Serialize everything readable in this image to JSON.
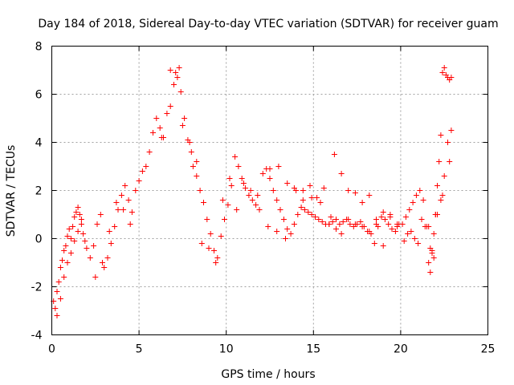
{
  "chart_data": {
    "type": "scatter",
    "title": "Day 184 of 2018, Sidereal Day-to-day VTEC variation (SDTVAR) for receiver guam",
    "xlabel": "GPS time / hours",
    "ylabel": "SDTVAR / TECUs",
    "xlim": [
      0,
      25
    ],
    "ylim": [
      -4,
      8
    ],
    "xticks": [
      0,
      5,
      10,
      15,
      20,
      25
    ],
    "yticks": [
      -4,
      -2,
      0,
      2,
      4,
      6,
      8
    ],
    "xtick_labels": [
      "0",
      "5",
      "10",
      "15",
      "20",
      "25"
    ],
    "ytick_labels": [
      "-4",
      "-2",
      "0",
      "2",
      "4",
      "6",
      "8"
    ],
    "grid": true,
    "marker": "+",
    "color": "#ff0000",
    "series": [
      {
        "name": "SDTVAR",
        "x": [
          0.1,
          0.2,
          0.3,
          0.4,
          0.5,
          0.6,
          0.7,
          0.8,
          0.9,
          1.0,
          1.1,
          1.2,
          1.3,
          1.4,
          1.5,
          1.6,
          1.7,
          1.8,
          1.9,
          2.0,
          0.3,
          0.5,
          0.7,
          0.9,
          1.1,
          1.3,
          1.5,
          1.7,
          2.2,
          2.4,
          2.6,
          2.8,
          3.0,
          3.2,
          3.4,
          3.6,
          3.8,
          4.0,
          4.2,
          4.4,
          4.6,
          4.8,
          5.0,
          5.2,
          2.5,
          2.9,
          3.3,
          3.7,
          4.1,
          4.5,
          5.4,
          5.6,
          5.8,
          6.0,
          6.2,
          6.4,
          6.6,
          6.8,
          7.0,
          7.2,
          7.4,
          7.6,
          7.8,
          8.0,
          6.3,
          6.8,
          7.1,
          7.3,
          7.5,
          7.9,
          8.3,
          8.1,
          8.3,
          8.5,
          8.7,
          8.9,
          9.1,
          9.3,
          9.5,
          9.7,
          9.9,
          10.1,
          10.3,
          10.5,
          10.7,
          10.9,
          11.1,
          11.3,
          11.5,
          11.7,
          11.9,
          8.6,
          9.0,
          9.4,
          9.8,
          10.2,
          10.6,
          11.0,
          11.4,
          11.8,
          12.1,
          12.3,
          12.5,
          12.7,
          12.9,
          13.1,
          13.3,
          13.5,
          13.7,
          13.9,
          14.1,
          14.3,
          14.5,
          14.7,
          14.9,
          15.1,
          15.3,
          15.5,
          15.7,
          15.9,
          12.4,
          12.9,
          13.4,
          13.9,
          14.4,
          14.9,
          15.4,
          15.9,
          16.1,
          16.3,
          16.5,
          16.7,
          16.9,
          17.1,
          17.3,
          17.5,
          17.7,
          17.9,
          18.1,
          18.3,
          18.5,
          18.7,
          18.9,
          19.1,
          19.3,
          19.5,
          19.7,
          19.9,
          16.2,
          16.6,
          17.0,
          17.4,
          17.8,
          18.2,
          18.6,
          19.0,
          19.4,
          19.8,
          20.1,
          20.3,
          20.5,
          20.7,
          20.9,
          21.1,
          21.3,
          21.5,
          21.7,
          21.9,
          22.1,
          22.3,
          22.5,
          22.7,
          22.9,
          20.4,
          20.8,
          21.2,
          21.6,
          22.0,
          22.4,
          22.8,
          22.4,
          22.5,
          22.6,
          22.7,
          22.8,
          22.9,
          16.0,
          16.3,
          16.6,
          17.0,
          17.4,
          17.8,
          18.2,
          18.6,
          19.0,
          19.4,
          19.8,
          20.2,
          20.6,
          21.0,
          21.4,
          21.8,
          14.0,
          14.4,
          14.8,
          15.2,
          15.6,
          12.5,
          13.0,
          13.5,
          21.6,
          21.7,
          21.8,
          21.9,
          22.0,
          22.1,
          22.2,
          22.3
        ],
        "y": [
          -2.6,
          -2.9,
          -2.2,
          -1.8,
          -1.2,
          -0.9,
          -0.5,
          -0.3,
          0.1,
          0.4,
          0.0,
          0.5,
          0.9,
          1.1,
          1.3,
          1.0,
          0.6,
          0.2,
          -0.1,
          -0.4,
          -3.2,
          -2.5,
          -1.6,
          -1.0,
          -0.6,
          -0.1,
          0.3,
          0.8,
          -0.8,
          -0.3,
          0.6,
          1.0,
          -1.2,
          -0.8,
          -0.2,
          0.5,
          1.2,
          1.8,
          2.2,
          1.6,
          1.1,
          2.0,
          2.4,
          2.8,
          -1.6,
          -1.0,
          0.3,
          1.5,
          1.2,
          0.6,
          3.0,
          3.6,
          4.4,
          5.0,
          4.6,
          4.2,
          5.2,
          5.5,
          6.4,
          6.7,
          6.1,
          5.0,
          4.1,
          3.6,
          4.2,
          7.0,
          6.9,
          7.1,
          4.7,
          4.0,
          3.2,
          3.0,
          2.6,
          2.0,
          1.5,
          0.8,
          0.2,
          -0.5,
          -0.8,
          0.1,
          0.8,
          1.4,
          2.2,
          3.4,
          3.0,
          2.5,
          2.1,
          1.8,
          1.6,
          1.4,
          1.2,
          -0.2,
          -0.4,
          -1.0,
          1.6,
          2.5,
          1.2,
          2.3,
          2.0,
          1.8,
          2.7,
          2.9,
          2.5,
          2.0,
          1.6,
          1.2,
          0.8,
          0.4,
          0.2,
          0.6,
          1.0,
          1.3,
          1.2,
          1.1,
          1.0,
          0.9,
          0.8,
          0.7,
          0.6,
          0.6,
          0.5,
          0.3,
          0.0,
          2.1,
          2.0,
          1.7,
          1.5,
          0.6,
          0.7,
          0.8,
          0.6,
          0.7,
          0.8,
          0.6,
          0.5,
          0.6,
          0.7,
          0.5,
          0.3,
          0.2,
          -0.2,
          0.5,
          0.9,
          0.8,
          0.6,
          0.4,
          0.3,
          0.6,
          3.5,
          2.7,
          2.0,
          1.9,
          1.5,
          1.8,
          0.8,
          1.1,
          1.0,
          0.5,
          0.6,
          0.9,
          1.2,
          1.5,
          1.8,
          2.0,
          1.6,
          0.5,
          -0.4,
          -0.8,
          1.0,
          1.6,
          2.6,
          4.0,
          4.5,
          0.2,
          0.0,
          0.8,
          0.5,
          1.0,
          1.8,
          3.2,
          6.9,
          7.1,
          6.8,
          6.7,
          6.6,
          6.7,
          0.9,
          0.4,
          0.2,
          0.8,
          0.6,
          0.5,
          0.3,
          0.6,
          -0.3,
          0.9,
          0.6,
          -0.1,
          0.3,
          -0.2,
          0.5,
          -0.5,
          2.0,
          1.6,
          2.2,
          1.7,
          2.1,
          2.9,
          3.0,
          2.3,
          -1.0,
          -1.4,
          -0.6,
          0.2,
          1.0,
          2.2,
          3.2,
          4.3
        ]
      }
    ]
  }
}
